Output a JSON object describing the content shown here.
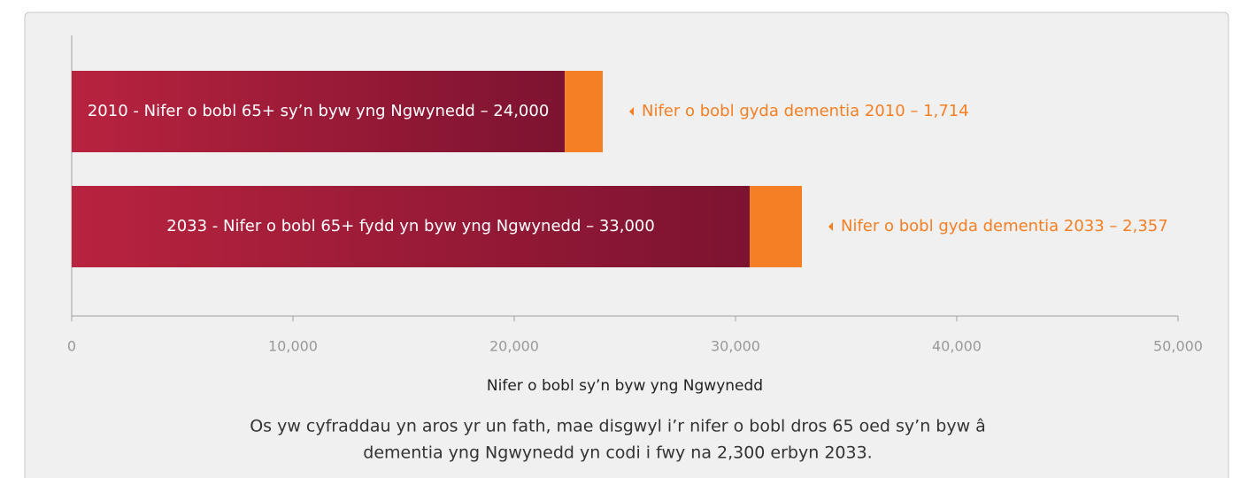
{
  "chart_data": {
    "type": "stacked-barh",
    "bar_labels": [
      "2010 - Nifer o bobl 65+ sy’n byw yng Ngwynedd – 24,000",
      "2033 - Nifer o bobl 65+ fydd yn byw yng Ngwynedd – 33,000"
    ],
    "annotations": [
      "Nifer o bobl gyda dementia 2010 – 1,714",
      "Nifer o bobl gyda dementia 2033 – 2,357"
    ],
    "series": [
      {
        "color": "#a01c38",
        "values": [
          22286,
          30643
        ]
      },
      {
        "color": "#f47f24",
        "values": [
          1714,
          2357
        ]
      }
    ],
    "xlim": [
      0,
      50000
    ],
    "xticks": [
      0,
      {
        "value": 10000,
        "label": "10,000"
      },
      {
        "value": 20000,
        "label": "20,000"
      },
      {
        "value": 30000,
        "label": "30,000"
      },
      {
        "value": 40000,
        "label": "40,000"
      },
      {
        "value": 50000,
        "label": "50,000"
      }
    ],
    "xlabel": "Nifer o bobl sy’n byw yng Ngwynedd",
    "caption": [
      "Os yw cyfraddau yn aros yr un fath, mae disgwyl i’r nifer o bobl dros 65 oed sy’n byw â",
      "dementia yng Ngwynedd yn codi i fwy na 2,300 erbyn 2033."
    ]
  }
}
